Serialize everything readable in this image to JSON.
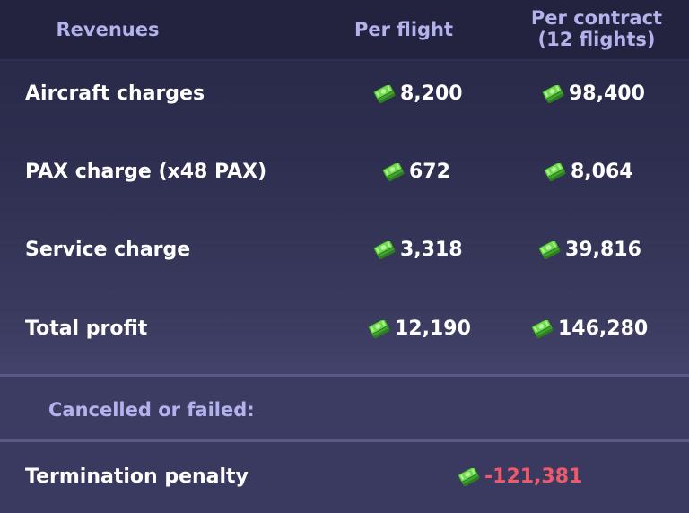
{
  "header": {
    "revenues": "Revenues",
    "per_flight": "Per flight",
    "per_contract_line1": "Per contract",
    "per_contract_line2": "(12 flights)"
  },
  "rows": [
    {
      "label": "Aircraft charges",
      "per_flight": "8,200",
      "per_contract": "98,400"
    },
    {
      "label": "PAX charge (x48 PAX)",
      "per_flight": "672",
      "per_contract": "8,064"
    },
    {
      "label": "Service charge",
      "per_flight": "3,318",
      "per_contract": "39,816"
    },
    {
      "label": "Total profit",
      "per_flight": "12,190",
      "per_contract": "146,280"
    }
  ],
  "cancel_section": {
    "title": "Cancelled or failed:",
    "penalty_label": "Termination penalty",
    "penalty_value": "-121,381"
  },
  "icons": {
    "money": "money-bill-stack-icon"
  },
  "colors": {
    "header_text": "#b4b2ec",
    "value_text": "#ffffff",
    "penalty_text": "#ef5a6a",
    "money_green": "#5fd14a"
  }
}
